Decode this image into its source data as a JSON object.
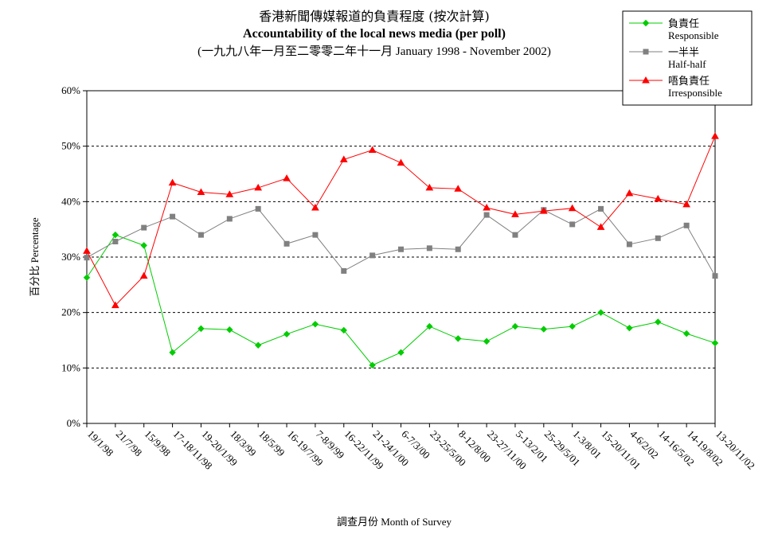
{
  "titles": {
    "line1": "香港新聞傳媒報道的負責程度 (按次計算)",
    "line2": "Accountability of the local news media (per poll)",
    "line3": "(一九九八年一月至二零零二年十一月 January 1998 - November 2002)"
  },
  "chart_data": {
    "type": "line",
    "title": "Accountability of the local news media (per poll)",
    "xlabel": "調查月份 Month of Survey",
    "ylabel": "百分比 Percentage",
    "ylim": [
      0,
      60
    ],
    "yticks": [
      "0%",
      "10%",
      "20%",
      "30%",
      "40%",
      "50%",
      "60%"
    ],
    "grid": "horizontal dashed",
    "legend_position": "top-right",
    "categories": [
      "19/1/98",
      "21/7/98",
      "15/9/98",
      "17-18/11/98",
      "19-20/1/99",
      "18/3/99",
      "18/5/99",
      "16-19/7/99",
      "7-8/9/99",
      "16-22/11/99",
      "21-24/1/00",
      "6-7/3/00",
      "23-25/5/00",
      "8-12/8/00",
      "23-27/11/00",
      "5-13/2/01",
      "25-29/5/01",
      "1-3/8/01",
      "15-20/11/01",
      "4-6/2/02",
      "14-16/5/02",
      "14-19/8/02",
      "13-20/11/02"
    ],
    "series": [
      {
        "name_zh": "負責任",
        "name_en": "Responsible",
        "color": "#00cc00",
        "marker": "diamond",
        "values": [
          26.3,
          34.0,
          32.1,
          12.8,
          17.1,
          16.9,
          14.1,
          16.1,
          17.9,
          16.8,
          10.5,
          12.8,
          17.5,
          15.3,
          14.8,
          17.5,
          17.0,
          17.5,
          20.0,
          17.2,
          18.3,
          16.2,
          14.5
        ]
      },
      {
        "name_zh": "一半半",
        "name_en": "Half-half",
        "color": "#808080",
        "marker": "square",
        "values": [
          29.9,
          32.8,
          35.3,
          37.3,
          34.0,
          36.9,
          38.7,
          32.4,
          34.0,
          27.5,
          30.3,
          31.4,
          31.6,
          31.4,
          37.6,
          34.0,
          38.5,
          35.9,
          38.7,
          32.3,
          33.4,
          35.7,
          26.6
        ]
      },
      {
        "name_zh": "唔負責任",
        "name_en": "Irresponsible",
        "color": "#ff0000",
        "marker": "triangle",
        "values": [
          31.1,
          21.3,
          26.6,
          43.4,
          41.7,
          41.3,
          42.5,
          44.2,
          38.9,
          47.6,
          49.3,
          47.0,
          42.5,
          42.3,
          38.9,
          37.7,
          38.3,
          38.8,
          35.4,
          41.5,
          40.5,
          39.5,
          51.8
        ]
      }
    ]
  }
}
